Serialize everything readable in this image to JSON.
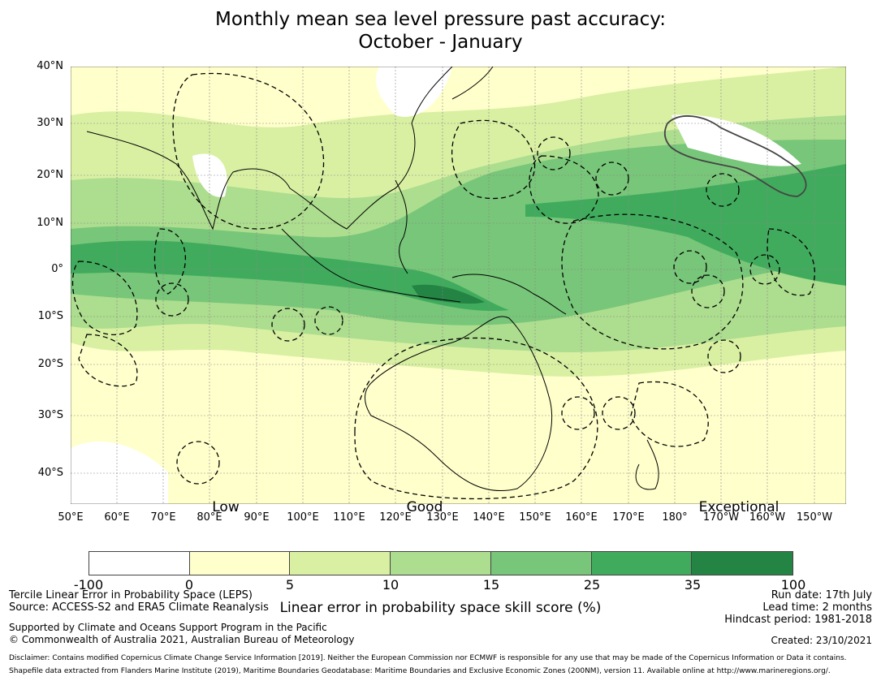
{
  "title_line1": "Monthly mean sea level pressure past accuracy:",
  "title_line2": "October - January",
  "map": {
    "lat_labels": [
      "40°N",
      "30°N",
      "20°N",
      "10°N",
      "0°",
      "10°S",
      "20°S",
      "30°S",
      "40°S"
    ],
    "lon_labels": [
      "50°E",
      "60°E",
      "70°E",
      "80°E",
      "90°E",
      "100°E",
      "110°E",
      "120°E",
      "130°E",
      "140°E",
      "150°E",
      "160°E",
      "170°E",
      "180°",
      "170°W",
      "160°W",
      "150°W"
    ],
    "category_labels": [
      "Low",
      "Good",
      "Exceptional"
    ]
  },
  "colorbar": {
    "colors": [
      "#ffffff",
      "#ffffcc",
      "#d9f0a3",
      "#addd8e",
      "#78c679",
      "#41ab5d",
      "#238443"
    ],
    "ticks": [
      "-100",
      "0",
      "5",
      "10",
      "15",
      "25",
      "35",
      "100"
    ],
    "label": "Linear error in probability space skill score (%)"
  },
  "info_left": {
    "line1": "Tercile Linear Error in Probability Space (LEPS)",
    "line2": "Source: ACCESS-S2 and ERA5 Climate Reanalysis",
    "line3": "Supported by Climate and Oceans Support Program in the Pacific",
    "line4": "© Commonwealth of Australia 2021, Australian Bureau of Meteorology"
  },
  "info_right": {
    "run_date": "Run date: 17th July",
    "lead_time": "Lead time: 2 months",
    "hindcast": "Hindcast period: 1981-2018",
    "created": "Created: 23/10/2021"
  },
  "disclaimer_line1": "Disclaimer: Contains modified Copernicus Climate Change Service Information [2019]. Neither the European Commission nor ECMWF is responsible for any use that may be made of the Copernicus Information or Data it contains.",
  "disclaimer_line2": "Shapefile data extracted from Flanders Marine Institute (2019), Maritime Boundaries Geodatabase: Maritime Boundaries and Exclusive Economic Zones (200NM), version 11. Available online at http://www.marineregions.org/."
}
